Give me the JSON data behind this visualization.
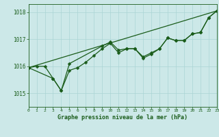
{
  "title": "Graphe pression niveau de la mer (hPa)",
  "background_color": "#cce8e8",
  "grid_color": "#aad4d4",
  "line_color": "#1a5c1a",
  "x_min": 0,
  "x_max": 23,
  "y_min": 1014.5,
  "y_max": 1018.3,
  "y_ticks": [
    1015,
    1016,
    1017,
    1018
  ],
  "x_ticks": [
    0,
    1,
    2,
    3,
    4,
    5,
    6,
    7,
    8,
    9,
    10,
    11,
    12,
    13,
    14,
    15,
    16,
    17,
    18,
    19,
    20,
    21,
    22,
    23
  ],
  "series1": {
    "x": [
      0,
      1,
      2,
      3,
      4,
      5,
      6,
      7,
      8,
      9,
      10,
      11,
      12,
      13,
      14,
      15,
      16,
      17,
      18,
      19,
      20,
      21,
      22,
      23
    ],
    "y": [
      1015.95,
      1016.0,
      1016.0,
      1015.55,
      1015.1,
      1015.85,
      1015.95,
      1016.15,
      1016.4,
      1016.65,
      1016.85,
      1016.5,
      1016.65,
      1016.65,
      1016.3,
      1016.45,
      1016.65,
      1017.05,
      1016.95,
      1016.95,
      1017.2,
      1017.25,
      1017.8,
      1018.05
    ]
  },
  "series2": {
    "x": [
      0,
      3,
      4,
      5,
      9,
      10,
      11,
      12,
      13,
      14,
      15,
      16,
      17,
      18,
      19,
      20,
      21,
      22,
      23
    ],
    "y": [
      1015.95,
      1015.55,
      1015.1,
      1016.1,
      1016.75,
      1016.9,
      1016.6,
      1016.65,
      1016.65,
      1016.35,
      1016.5,
      1016.65,
      1017.05,
      1016.95,
      1016.95,
      1017.2,
      1017.25,
      1017.8,
      1018.05
    ]
  },
  "series3": {
    "x": [
      0,
      23
    ],
    "y": [
      1015.95,
      1018.05
    ]
  },
  "marker": "D",
  "marker_size": 2.5,
  "linewidth": 0.9
}
